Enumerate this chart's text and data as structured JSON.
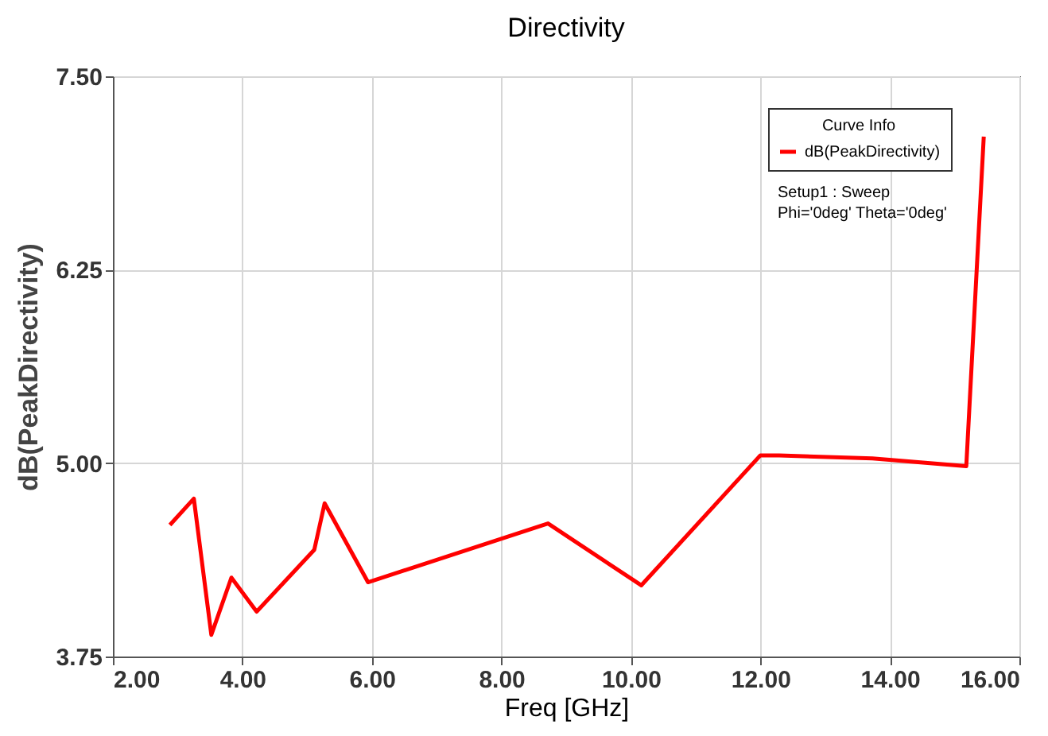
{
  "chart_data": {
    "type": "line",
    "title": "Directivity",
    "xlabel": "Freq [GHz]",
    "ylabel": "dB(PeakDirectivity)",
    "legend_title": "Curve Info",
    "annotations": [
      "Setup1 : Sweep",
      "Phi='0deg' Theta='0deg'"
    ],
    "x": [
      2.88,
      3.25,
      3.52,
      3.83,
      4.22,
      5.11,
      5.27,
      5.94,
      8.72,
      10.16,
      12.0,
      12.29,
      13.73,
      15.18,
      15.45
    ],
    "series": [
      {
        "name": "dB(PeakDirectivity)",
        "color": "#ff0000",
        "values": [
          4.6,
          4.77,
          3.89,
          4.26,
          4.04,
          4.44,
          4.74,
          4.23,
          4.61,
          4.21,
          5.05,
          5.05,
          5.03,
          4.98,
          7.11
        ]
      }
    ],
    "xlim": [
      2,
      16
    ],
    "xticks": [
      {
        "value": 2,
        "label": "2.00"
      },
      {
        "value": 4,
        "label": "4.00"
      },
      {
        "value": 6,
        "label": "6.00"
      },
      {
        "value": 8,
        "label": "8.00"
      },
      {
        "value": 10,
        "label": "10.00"
      },
      {
        "value": 12,
        "label": "12.00"
      },
      {
        "value": 14,
        "label": "14.00"
      },
      {
        "value": 16,
        "label": "16.00"
      }
    ],
    "ylim": [
      3.75,
      7.5
    ],
    "yticks": [
      3.75,
      {
        "value": 5,
        "label": "5.00"
      },
      6.25,
      {
        "value": 7.5,
        "label": "7.50"
      }
    ],
    "grid": true,
    "legend": "top right",
    "marker": "none",
    "line_style": "solid"
  }
}
